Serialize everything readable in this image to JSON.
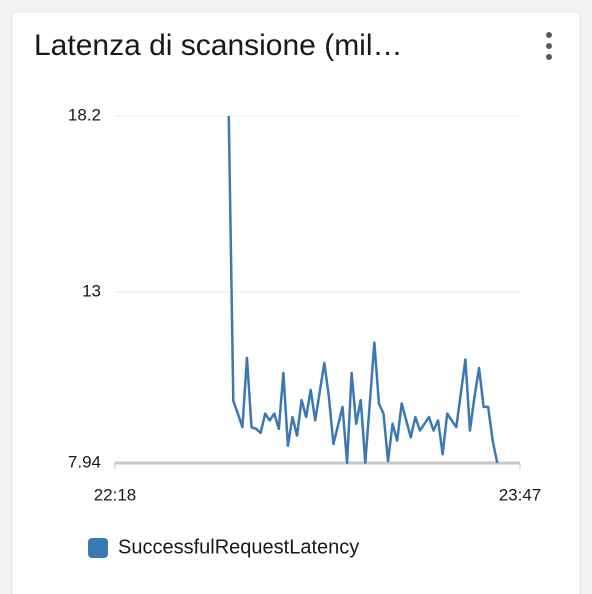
{
  "chart_data": {
    "type": "line",
    "title": "Latenza di scansione (mil…",
    "x": [
      "22:43",
      "22:44",
      "22:45",
      "22:46",
      "22:47",
      "22:48",
      "22:49",
      "22:50",
      "22:51",
      "22:52",
      "22:53",
      "22:54",
      "22:55",
      "22:56",
      "22:57",
      "22:58",
      "22:59",
      "23:00",
      "23:01",
      "23:02",
      "23:04",
      "23:05",
      "23:06",
      "23:08",
      "23:09",
      "23:10",
      "23:11",
      "23:12",
      "23:13",
      "23:15",
      "23:16",
      "23:17",
      "23:18",
      "23:19",
      "23:20",
      "23:21",
      "23:22",
      "23:23",
      "23:24",
      "23:25",
      "23:26",
      "23:27",
      "23:28",
      "23:29",
      "23:30",
      "23:31",
      "23:32",
      "23:33",
      "23:34",
      "23:35",
      "23:36",
      "23:37",
      "23:38",
      "23:39",
      "23:40",
      "23:41",
      "23:42"
    ],
    "series": [
      {
        "name": "SuccessfulRequestLatency",
        "color": "#3b78b4",
        "values": [
          18.2,
          9.77,
          9.4,
          9.0,
          11.05,
          9.0,
          8.95,
          8.83,
          9.4,
          9.2,
          9.4,
          8.95,
          10.6,
          8.45,
          9.3,
          8.75,
          9.8,
          9.3,
          10.1,
          9.2,
          10.9,
          9.9,
          8.5,
          9.6,
          7.94,
          10.6,
          9.1,
          9.8,
          7.95,
          11.5,
          9.7,
          9.4,
          8.0,
          9.1,
          8.6,
          9.7,
          9.2,
          8.7,
          9.3,
          8.9,
          9.1,
          9.3,
          8.9,
          9.2,
          8.2,
          9.4,
          9.2,
          9.0,
          10.0,
          11.0,
          8.9,
          9.9,
          10.75,
          9.6,
          9.6,
          8.6,
          7.94
        ]
      }
    ],
    "xlim": [
      "22:18",
      "23:47"
    ],
    "xticks": [
      "22:18",
      "23:47"
    ],
    "ylim": [
      7.94,
      18.2
    ],
    "yticks": [
      7.94,
      13,
      18.2
    ],
    "grid": true
  }
}
